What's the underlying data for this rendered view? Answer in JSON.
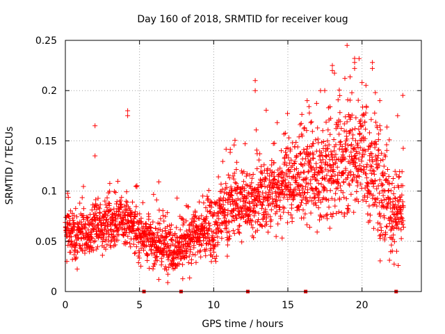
{
  "chart_data": {
    "type": "scatter",
    "title": "Day 160 of 2018, SRMTID for receiver koug",
    "xlabel": "GPS time / hours",
    "ylabel": "SRMTID / TECUs",
    "xlim": [
      0,
      24
    ],
    "ylim": [
      0,
      0.25
    ],
    "x_ticks": [
      "0",
      "5",
      "10",
      "15",
      "20"
    ],
    "x_tick_values": [
      0,
      5,
      10,
      15,
      20
    ],
    "y_ticks": [
      "0",
      "0.05",
      "0.1",
      "0.15",
      "0.2",
      "0.25"
    ],
    "y_tick_values": [
      0,
      0.05,
      0.1,
      0.15,
      0.2,
      0.25
    ],
    "grid": true,
    "marker": "plus",
    "series_color": "#ff0000",
    "trend_knots": [
      [
        0.0,
        0.058
      ],
      [
        1.0,
        0.055
      ],
      [
        2.0,
        0.064
      ],
      [
        3.0,
        0.068
      ],
      [
        4.0,
        0.07
      ],
      [
        5.0,
        0.06
      ],
      [
        6.0,
        0.048
      ],
      [
        7.0,
        0.045
      ],
      [
        8.0,
        0.046
      ],
      [
        9.0,
        0.058
      ],
      [
        10.0,
        0.065
      ],
      [
        11.0,
        0.085
      ],
      [
        12.0,
        0.09
      ],
      [
        13.0,
        0.09
      ],
      [
        14.0,
        0.1
      ],
      [
        15.0,
        0.11
      ],
      [
        16.0,
        0.115
      ],
      [
        17.0,
        0.11
      ],
      [
        18.0,
        0.12
      ],
      [
        19.0,
        0.135
      ],
      [
        20.0,
        0.135
      ],
      [
        21.0,
        0.11
      ],
      [
        22.0,
        0.08
      ],
      [
        22.8,
        0.085
      ]
    ],
    "spread_knots": [
      [
        0,
        0.012
      ],
      [
        9,
        0.013
      ],
      [
        10,
        0.016
      ],
      [
        14,
        0.02
      ],
      [
        18,
        0.026
      ],
      [
        20,
        0.028
      ],
      [
        22.8,
        0.024
      ]
    ],
    "x_range_points": [
      0.0,
      22.8
    ],
    "n_points": 2400,
    "highlight_points": [
      {
        "x": 2.0,
        "y": 0.165
      },
      {
        "x": 2.0,
        "y": 0.135
      },
      {
        "x": 4.2,
        "y": 0.18
      },
      {
        "x": 4.2,
        "y": 0.175
      },
      {
        "x": 12.8,
        "y": 0.21
      },
      {
        "x": 12.8,
        "y": 0.2
      },
      {
        "x": 16.3,
        "y": 0.19
      },
      {
        "x": 17.2,
        "y": 0.2
      },
      {
        "x": 18.0,
        "y": 0.225
      },
      {
        "x": 18.0,
        "y": 0.22
      },
      {
        "x": 18.5,
        "y": 0.195
      },
      {
        "x": 19.5,
        "y": 0.232
      },
      {
        "x": 19.5,
        "y": 0.228
      },
      {
        "x": 19.5,
        "y": 0.222
      },
      {
        "x": 20.0,
        "y": 0.208
      },
      {
        "x": 20.7,
        "y": 0.228
      },
      {
        "x": 20.7,
        "y": 0.222
      },
      {
        "x": 20.9,
        "y": 0.198
      },
      {
        "x": 21.2,
        "y": 0.19
      },
      {
        "x": 22.4,
        "y": 0.175
      },
      {
        "x": 21.2,
        "y": 0.165
      },
      {
        "x": 6.3,
        "y": 0.012
      },
      {
        "x": 0.1,
        "y": 0.03
      },
      {
        "x": 8.5,
        "y": 0.028
      }
    ],
    "zero_points": [
      {
        "x": 5.3,
        "y": 0
      },
      {
        "x": 7.8,
        "y": 0
      },
      {
        "x": 12.3,
        "y": 0
      },
      {
        "x": 16.2,
        "y": 0
      },
      {
        "x": 22.3,
        "y": 0
      }
    ]
  }
}
